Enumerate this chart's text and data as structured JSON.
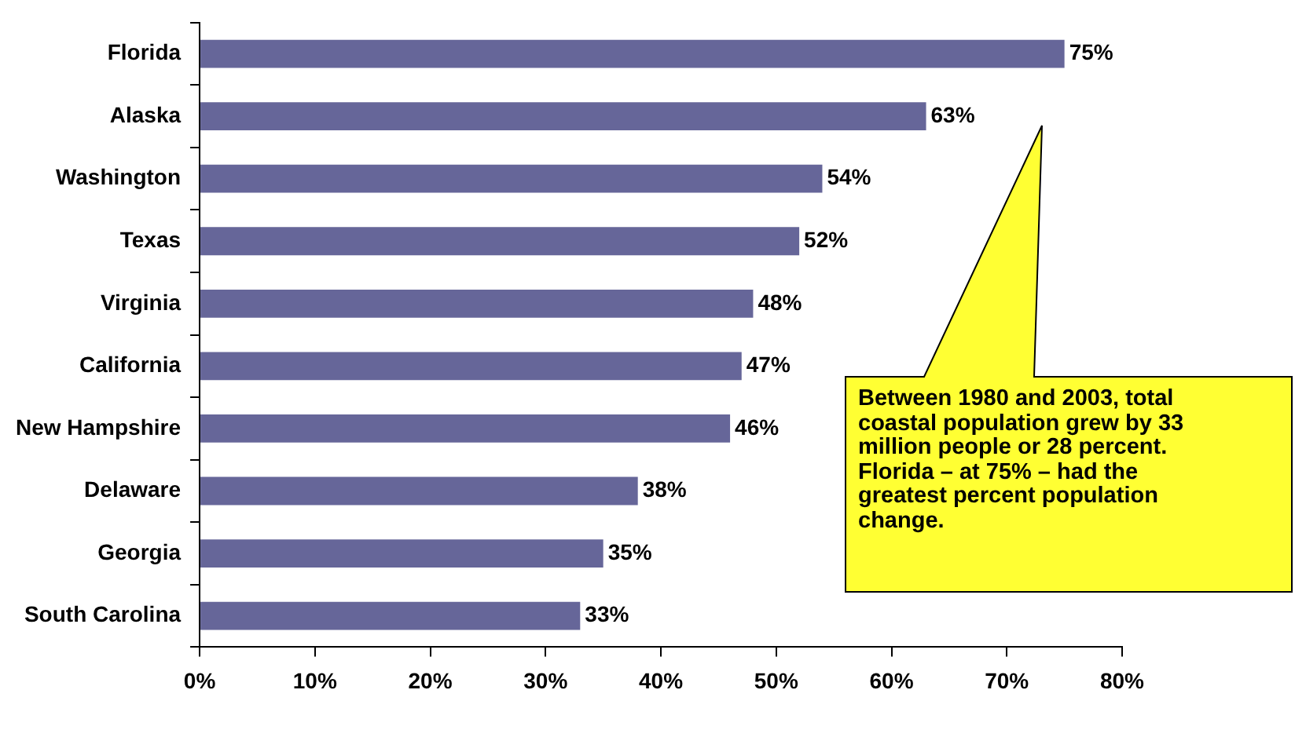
{
  "chart_data": {
    "type": "bar",
    "orientation": "horizontal",
    "categories": [
      "Florida",
      "Alaska",
      "Washington",
      "Texas",
      "Virginia",
      "California",
      "New Hampshire",
      "Delaware",
      "Georgia",
      "South Carolina"
    ],
    "values": [
      75,
      63,
      54,
      52,
      48,
      47,
      46,
      38,
      35,
      33
    ],
    "value_labels": [
      "75%",
      "63%",
      "54%",
      "52%",
      "48%",
      "47%",
      "46%",
      "38%",
      "35%",
      "33%"
    ],
    "color": "#666699",
    "xlim": [
      0,
      80
    ],
    "xticks": [
      {
        "value": 0,
        "label": "0%"
      },
      {
        "value": 10,
        "label": "10%"
      },
      {
        "value": 20,
        "label": "20%"
      },
      {
        "value": 30,
        "label": "30%"
      },
      {
        "value": 40,
        "label": "40%"
      },
      {
        "value": 50,
        "label": "50%"
      },
      {
        "value": 60,
        "label": "60%"
      },
      {
        "value": 70,
        "label": "70%"
      },
      {
        "value": 80,
        "label": "80%"
      }
    ],
    "grid": false,
    "legend": false,
    "annotations": [
      "Between 1980 and 2003, total coastal population grew by 33 million people or 28 percent. Florida – at 75% – had the greatest percent population change."
    ]
  }
}
